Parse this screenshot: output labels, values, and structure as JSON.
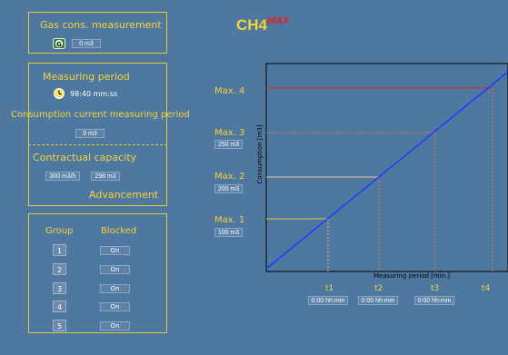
{
  "gas_panel": {
    "title": "Gas cons. measurement",
    "icon": "gas-meter-icon",
    "icon_letter": "G",
    "value": "0 m3"
  },
  "period_panel": {
    "title": "Measuring period",
    "clock_icon": "clock-icon",
    "time": "98:40 mm:ss",
    "consumption_label": "Consumption current measuring period",
    "consumption_value": "0 m3",
    "capacity_label": "Contractual capacity",
    "capacity_value": "300 m3/h",
    "advancement_value": "298 m3",
    "advancement_label": "Advancement"
  },
  "group_panel": {
    "group_header": "Group",
    "blocked_header": "Blocked",
    "rows": [
      {
        "group": "1",
        "blocked": "On"
      },
      {
        "group": "2",
        "blocked": "On"
      },
      {
        "group": "3",
        "blocked": "On"
      },
      {
        "group": "4",
        "blocked": "On"
      },
      {
        "group": "5",
        "blocked": "On"
      }
    ]
  },
  "chart": {
    "title_main": "CH4",
    "title_sup": "MAX",
    "ylabel": "Consumption [m3]",
    "xlabel": "Measuring period [min.]",
    "max_levels": [
      {
        "label": "Max. 4",
        "value": ""
      },
      {
        "label": "Max. 3",
        "value": "250 m3"
      },
      {
        "label": "Max. 2",
        "value": "200 m3"
      },
      {
        "label": "Max. 1",
        "value": "100 m3"
      }
    ],
    "time_marks": [
      {
        "label": "t1",
        "value": "0:00 hh:mm"
      },
      {
        "label": "t2",
        "value": "0:00 hh:mm"
      },
      {
        "label": "t3",
        "value": "0:00 hh:mm"
      },
      {
        "label": "t4",
        "value": ""
      }
    ],
    "colors": {
      "max1": "#e6c93c",
      "max2": "#e8c0a0",
      "max3": "#d96a6a",
      "max4": "#e02020",
      "line": "#1a3cff",
      "frame": "#000000",
      "plot_bg": "#4f78a0"
    }
  }
}
